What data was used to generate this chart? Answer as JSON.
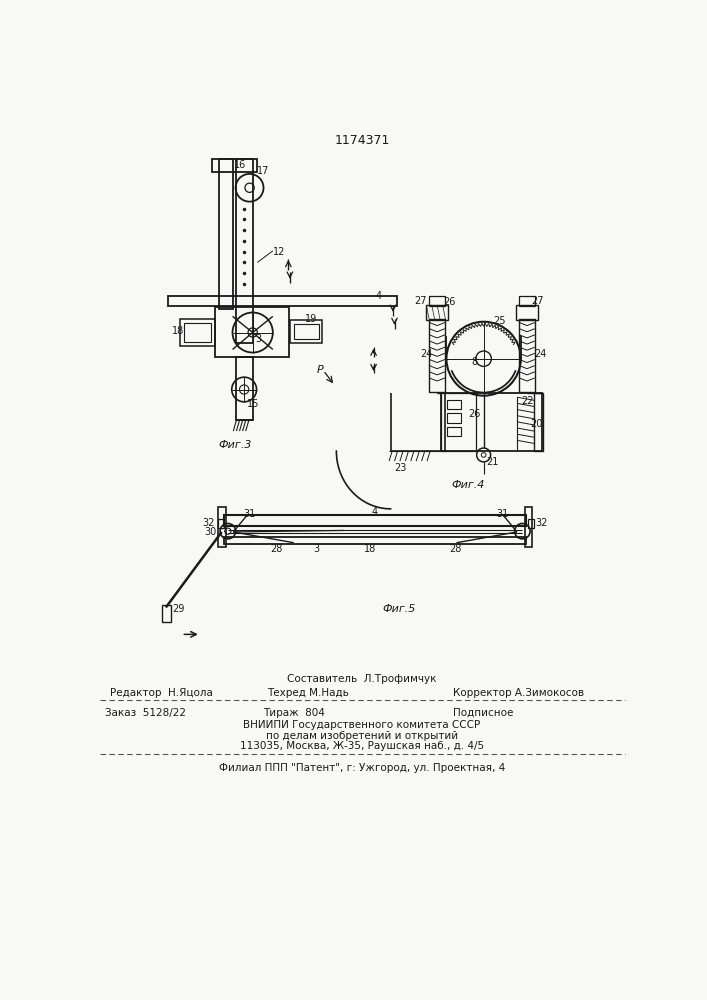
{
  "patent_number": "1174371",
  "bg_color": "#f8f8f5",
  "line_color": "#1a1a1a",
  "text_color": "#1a1a1a",
  "fig3_label": "Фиг.3",
  "fig4_label": "Фиг.4",
  "fig5_label": "Фиг.5",
  "footer_line1_left": "Редактор  Н.Яцола",
  "footer_line1_center": "Техред М.Надь",
  "footer_line1_right": "Корректор А.Зимокосов",
  "footer_compose": "Составитель  Л.Трофимчук",
  "footer_zakaz": "Заказ  5128/22",
  "footer_tirazh": "Тираж  804",
  "footer_podpisnoe": "Подписное",
  "footer_vniipи": "ВНИИПИ Государственного комитета СССР",
  "footer_po_delam": "по делам изобретений и открытий",
  "footer_address": "113035, Москва, Ж-35, Раушская наб., д. 4/5",
  "footer_filial": "Филиал ППП \"Патент\", г: Ужгород, ул. Проектная, 4"
}
